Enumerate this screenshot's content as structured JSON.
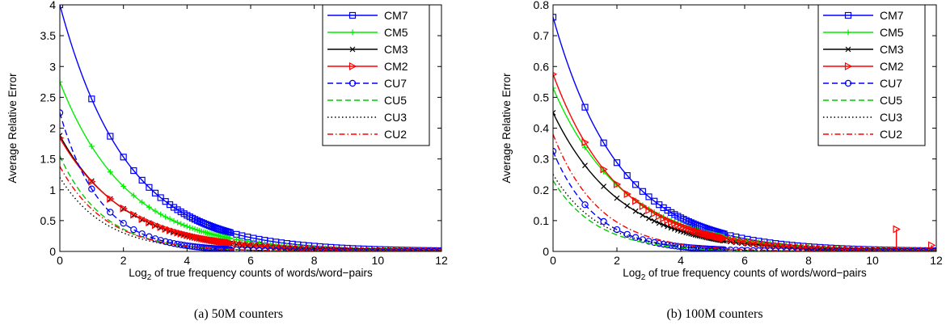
{
  "figure": {
    "charts": [
      {
        "caption": "(a)  50M counters"
      },
      {
        "caption": "(b)  100M counters"
      }
    ]
  },
  "chart_data": [
    {
      "type": "line",
      "caption": "(a)  50M counters",
      "xlabel_main": "Log",
      "xlabel_sub": "2",
      "xlabel_rest": " of true frequency counts of words/word−pairs",
      "ylabel": "Average Relative Error",
      "xlim": [
        0,
        12
      ],
      "ylim": [
        0,
        4
      ],
      "xticks": [
        0,
        2,
        4,
        6,
        8,
        10,
        12
      ],
      "xtick_labels": [
        "0",
        "2",
        "4",
        "6",
        "8",
        "10",
        "12"
      ],
      "yticks": [
        0,
        0.5,
        1,
        1.5,
        2,
        2.5,
        3,
        3.5,
        4
      ],
      "ytick_labels": [
        "0",
        "0.5",
        "1",
        "1.5",
        "2",
        "2.5",
        "3",
        "3.5",
        "4"
      ],
      "legend_position": "top-right",
      "series": [
        {
          "name": "CM7",
          "color": "#0000ff",
          "dash": "solid",
          "marker": "square",
          "y0": 4.0,
          "k": 0.693
        },
        {
          "name": "CM5",
          "color": "#00ee00",
          "dash": "solid",
          "marker": "plus",
          "y0": 2.75,
          "k": 0.69
        },
        {
          "name": "CM3",
          "color": "#000000",
          "dash": "solid",
          "marker": "x",
          "y0": 1.88,
          "k": 0.72
        },
        {
          "name": "CM2",
          "color": "#ff0000",
          "dash": "solid",
          "marker": "triangle-right",
          "y0": 1.84,
          "k": 0.7
        },
        {
          "name": "CU7",
          "color": "#0000ff",
          "dash": "dash",
          "marker": "circle",
          "y0": 2.25,
          "k": 1.15
        },
        {
          "name": "CU5",
          "color": "#00cc00",
          "dash": "dash",
          "marker": "none",
          "y0": 1.55,
          "k": 1.05
        },
        {
          "name": "CU3",
          "color": "#000000",
          "dash": "dot",
          "marker": "none",
          "y0": 1.2,
          "k": 1.0
        },
        {
          "name": "CU2",
          "color": "#ff0000",
          "dash": "dashdot",
          "marker": "none",
          "y0": 1.38,
          "k": 1.0
        }
      ]
    },
    {
      "type": "line",
      "caption": "(b)  100M counters",
      "xlabel_main": "Log",
      "xlabel_sub": "2",
      "xlabel_rest": " of true frequency counts of words/word−pairs",
      "ylabel": "Average Relative Error",
      "xlim": [
        0,
        12
      ],
      "ylim": [
        0,
        0.8
      ],
      "xticks": [
        0,
        2,
        4,
        6,
        8,
        10,
        12
      ],
      "xtick_labels": [
        "0",
        "2",
        "4",
        "6",
        "8",
        "10",
        "12"
      ],
      "yticks": [
        0,
        0.1,
        0.2,
        0.3,
        0.4,
        0.5,
        0.6,
        0.7,
        0.8
      ],
      "ytick_labels": [
        "0",
        "0.1",
        "0.2",
        "0.3",
        "0.4",
        "0.5",
        "0.6",
        "0.7",
        "0.8"
      ],
      "legend_position": "top-right",
      "series": [
        {
          "name": "CM7",
          "color": "#0000ff",
          "dash": "solid",
          "marker": "square",
          "y0": 0.76,
          "k": 0.7
        },
        {
          "name": "CM5",
          "color": "#00ee00",
          "dash": "solid",
          "marker": "plus",
          "y0": 0.53,
          "k": 0.65
        },
        {
          "name": "CM3",
          "color": "#000000",
          "dash": "solid",
          "marker": "x",
          "y0": 0.45,
          "k": 0.69
        },
        {
          "name": "CM2",
          "color": "#ff0000",
          "dash": "solid",
          "marker": "triangle-right",
          "y0": 0.575,
          "k": 0.7,
          "spikes": [
            {
              "x": 10.75,
              "y": 0.072
            },
            {
              "x": 11.85,
              "y": 0.02
            }
          ]
        },
        {
          "name": "CU7",
          "color": "#0000ff",
          "dash": "dash",
          "marker": "circle",
          "y0": 0.325,
          "k": 1.1
        },
        {
          "name": "CU5",
          "color": "#00cc00",
          "dash": "dash",
          "marker": "none",
          "y0": 0.23,
          "k": 1.05
        },
        {
          "name": "CU3",
          "color": "#000000",
          "dash": "dot",
          "marker": "none",
          "y0": 0.25,
          "k": 1.0
        },
        {
          "name": "CU2",
          "color": "#ff0000",
          "dash": "dashdot",
          "marker": "none",
          "y0": 0.38,
          "k": 1.0
        }
      ]
    }
  ]
}
